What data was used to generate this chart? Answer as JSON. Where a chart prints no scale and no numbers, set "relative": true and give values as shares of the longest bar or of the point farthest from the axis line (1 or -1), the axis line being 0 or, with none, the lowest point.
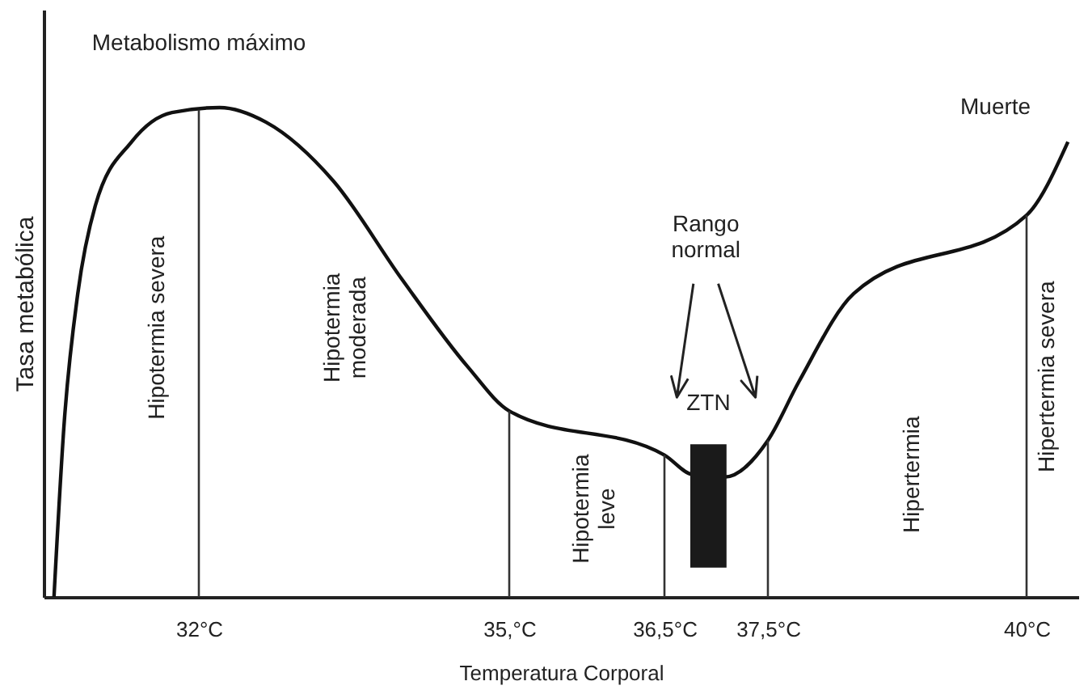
{
  "chart_data": {
    "type": "line",
    "relative": true,
    "xlabel": "Temperatura Corporal",
    "ylabel": "Tasa metabólica",
    "x": [
      30.6,
      30.7,
      30.83,
      31.0,
      31.35,
      31.74,
      32.2,
      32.65,
      33.3,
      33.96,
      34.6,
      35.0,
      36.5,
      36.77,
      37.08,
      37.5,
      37.8,
      38.33,
      40.0,
      40.4
    ],
    "series": [
      {
        "color": "#111111",
        "values": [
          0,
          0.36,
          0.62,
          0.8,
          0.93,
          0.99,
          1.0,
          0.97,
          0.85,
          0.65,
          0.47,
          0.38,
          0.29,
          0.25,
          0.245,
          0.32,
          0.44,
          0.62,
          0.78,
          0.93
        ]
      }
    ],
    "xlim": [
      30.5,
      40.5
    ],
    "xticks": [
      {
        "value": 32,
        "label": "32°C"
      },
      {
        "value": 35,
        "label": "35,°C"
      },
      {
        "value": 36.5,
        "label": "36,5°C"
      },
      {
        "value": 37.5,
        "label": "37,5°C"
      },
      {
        "value": 40,
        "label": "40°C"
      }
    ],
    "tick_labels": "x",
    "grid": false,
    "marker": "none",
    "line_style": "solid",
    "ref_lines": [
      {
        "axis": "x",
        "value": 32,
        "color": "#333333"
      },
      {
        "axis": "x",
        "value": 35,
        "color": "#333333"
      },
      {
        "axis": "x",
        "value": 36.5,
        "color": "#333333"
      },
      {
        "axis": "x",
        "value": 37.5,
        "color": "#333333"
      },
      {
        "axis": "x",
        "value": 40,
        "color": "#333333"
      }
    ],
    "bands": [
      {
        "axis": "x",
        "from": 36.75,
        "to": 37.1,
        "label": "ZTN",
        "color": "#1a1a1a"
      }
    ],
    "annotations": [
      "Metabolismo máximo",
      "Hipotermia severa",
      "Hipotermia\nmoderada",
      "Hipotermia\nleve",
      "Rango\nnormal",
      "Hipertermia",
      "Hipertermia severa",
      "Muerte"
    ]
  }
}
